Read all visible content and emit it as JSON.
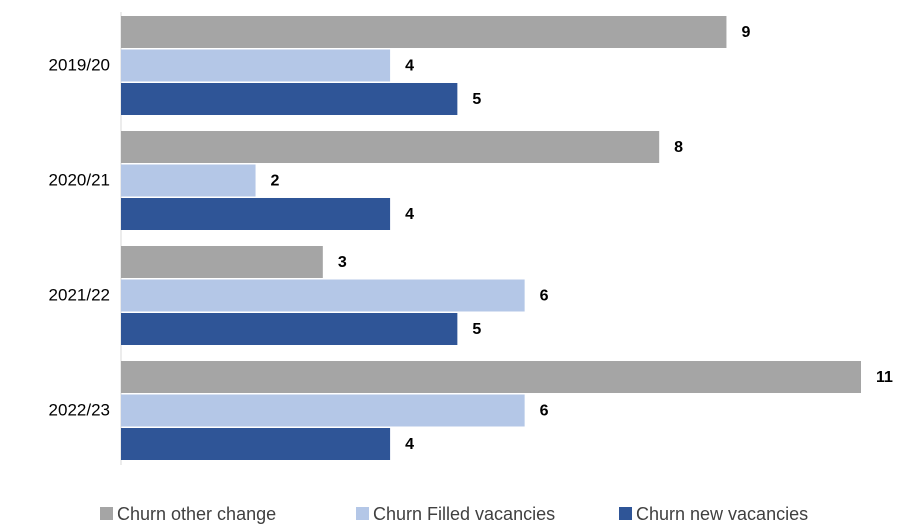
{
  "chart_data": {
    "type": "bar",
    "orientation": "horizontal",
    "categories": [
      "2019/20",
      "2020/21",
      "2021/22",
      "2022/23"
    ],
    "series": [
      {
        "name": "Churn other change",
        "color": "#a5a5a5",
        "values": [
          9,
          8,
          3,
          11
        ]
      },
      {
        "name": "Churn Filled vacancies",
        "color": "#b4c7e7",
        "values": [
          4,
          2,
          6,
          6
        ]
      },
      {
        "name": "Churn new vacancies",
        "color": "#2f5597",
        "values": [
          5,
          4,
          5,
          4
        ]
      }
    ],
    "legend": "bottom"
  }
}
